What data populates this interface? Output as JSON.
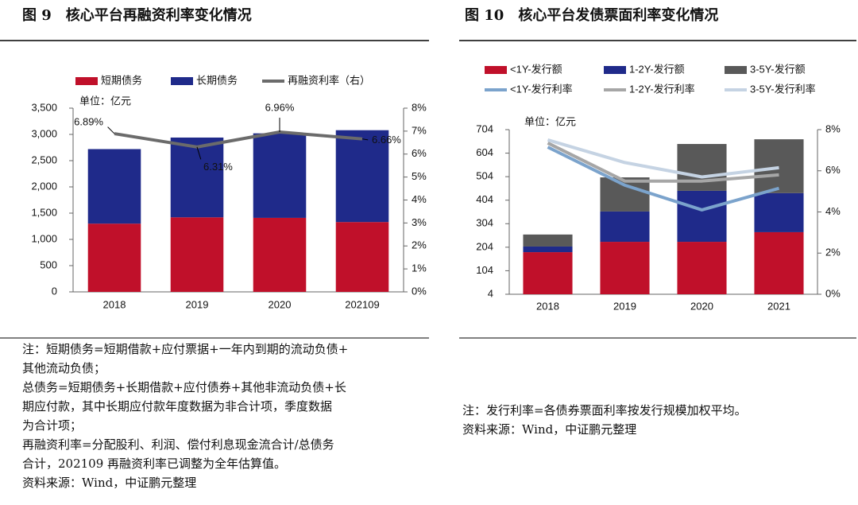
{
  "chart_data": [
    {
      "type": "bar",
      "stacked": true,
      "title": "图 9　核心平台再融资利率变化情况",
      "unit": "单位：亿元",
      "categories": [
        "2018",
        "2019",
        "2020",
        "202109"
      ],
      "series": [
        {
          "name": "短期债务",
          "type": "bar",
          "color": "#c0102a",
          "values": [
            1300,
            1420,
            1410,
            1330
          ]
        },
        {
          "name": "长期债务",
          "type": "bar",
          "color": "#1f2a8a",
          "values": [
            1420,
            1520,
            1610,
            1750
          ]
        },
        {
          "name": "再融资利率（右）",
          "type": "line",
          "axis": "y2",
          "color": "#6b6b6b",
          "values": [
            6.89,
            6.31,
            6.96,
            6.66
          ],
          "value_labels": [
            "6.89%",
            "6.31%",
            "6.96%",
            "6.66%"
          ]
        }
      ],
      "ylim": [
        0,
        3500
      ],
      "yticks": [
        0,
        {
          "value": 500,
          "label": "500"
        },
        {
          "value": 1000,
          "label": "1,000"
        },
        {
          "value": 1500,
          "label": "1,500"
        },
        {
          "value": 2000,
          "label": "2,000"
        },
        {
          "value": 2500,
          "label": "2,500"
        },
        {
          "value": 3000,
          "label": "3,000"
        },
        {
          "value": 3500,
          "label": "3,500"
        }
      ],
      "y2lim": [
        0,
        8
      ],
      "y2ticks": [
        {
          "value": 0,
          "label": "0%"
        },
        {
          "value": 1,
          "label": "1%"
        },
        {
          "value": 2,
          "label": "2%"
        },
        {
          "value": 3,
          "label": "3%"
        },
        {
          "value": 4,
          "label": "4%"
        },
        {
          "value": 5,
          "label": "5%"
        },
        {
          "value": 6,
          "label": "6%"
        },
        {
          "value": 7,
          "label": "7%"
        },
        {
          "value": 8,
          "label": "8%"
        }
      ],
      "legend": "top"
    },
    {
      "type": "bar",
      "stacked": true,
      "title": "图 10　核心平台发债票面利率变化情况",
      "unit": "单位：亿元",
      "categories": [
        "2018",
        "2019",
        "2020",
        "2021"
      ],
      "series": [
        {
          "name": "<1Y-发行额",
          "type": "bar",
          "color": "#c0102a",
          "values": [
            183,
            227,
            227,
            268
          ]
        },
        {
          "name": "1-2Y-发行额",
          "type": "bar",
          "color": "#1f2a8a",
          "values": [
            24,
            129,
            217,
            166
          ]
        },
        {
          "name": "3-5Y-发行额",
          "type": "bar",
          "color": "#595959",
          "values": [
            51,
            145,
            199,
            229
          ]
        },
        {
          "name": "<1Y-发行利率",
          "type": "line",
          "axis": "y2",
          "color": "#7ba3cc",
          "values": [
            7.15,
            5.3,
            4.1,
            5.15
          ]
        },
        {
          "name": "1-2Y-发行利率",
          "type": "line",
          "axis": "y2",
          "color": "#a6a6a6",
          "values": [
            7.35,
            5.5,
            5.5,
            5.8
          ]
        },
        {
          "name": "3-5Y-发行利率",
          "type": "line",
          "axis": "y2",
          "color": "#c5d3e3",
          "values": [
            7.5,
            6.4,
            5.7,
            6.15
          ]
        }
      ],
      "ylim": [
        4,
        704
      ],
      "yticks": [
        4,
        104,
        204,
        304,
        404,
        504,
        604,
        704
      ],
      "y2lim": [
        0,
        8
      ],
      "y2ticks": [
        {
          "value": 0,
          "label": "0%"
        },
        {
          "value": 2,
          "label": "2%"
        },
        {
          "value": 4,
          "label": "4%"
        },
        {
          "value": 6,
          "label": "6%"
        },
        {
          "value": 8,
          "label": "8%"
        }
      ],
      "legend": "top"
    }
  ],
  "notes": [
    [
      "注：短期债务=短期借款+应付票据+一年内到期的流动负债+",
      "其他流动负债；",
      "总债务=短期债务+长期借款+应付债券+其他非流动负债+长",
      "期应付款，其中长期应付款年度数据为非合计项，季度数据",
      "为合计项；",
      "再融资利率=分配股利、利润、偿付利息现金流合计/总债务",
      "合计，202109 再融资利率已调整为全年估算值。",
      "资料来源：Wind，中证鹏元整理"
    ],
    [
      "注：发行利率=各债券票面利率按发行规模加权平均。",
      "资料来源：Wind，中证鹏元整理"
    ]
  ]
}
